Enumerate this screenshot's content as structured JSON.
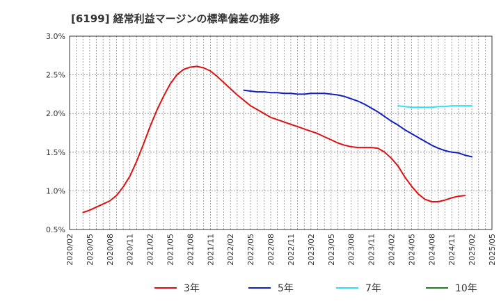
{
  "chart_data": {
    "type": "line",
    "title": "[6199]  経常利益マージンの標準偏差の推移",
    "xlabel": "",
    "ylabel": "",
    "ylim": [
      0.5,
      3.0
    ],
    "yticks": [
      0.5,
      1.0,
      1.5,
      2.0,
      2.5,
      3.0
    ],
    "yticklabels": [
      "0.5%",
      "1.0%",
      "1.5%",
      "2.0%",
      "2.5%",
      "3.0%"
    ],
    "xlim": [
      "2020/02",
      "2025/05"
    ],
    "xticklabels": [
      "2020/02",
      "2020/05",
      "2020/08",
      "2020/11",
      "2021/02",
      "2021/05",
      "2021/08",
      "2021/11",
      "2022/02",
      "2022/05",
      "2022/08",
      "2022/11",
      "2023/02",
      "2023/05",
      "2023/08",
      "2023/11",
      "2024/02",
      "2024/05",
      "2024/08",
      "2024/11",
      "2025/02",
      "2025/05"
    ],
    "grid": true,
    "legend_position": "bottom",
    "series": [
      {
        "name": "3年",
        "color": "#e01010",
        "points": [
          [
            "2020/04",
            0.72
          ],
          [
            "2020/05",
            0.75
          ],
          [
            "2020/06",
            0.79
          ],
          [
            "2020/07",
            0.83
          ],
          [
            "2020/08",
            0.87
          ],
          [
            "2020/09",
            0.94
          ],
          [
            "2020/10",
            1.05
          ],
          [
            "2020/11",
            1.19
          ],
          [
            "2020/12",
            1.38
          ],
          [
            "2021/01",
            1.6
          ],
          [
            "2021/02",
            1.83
          ],
          [
            "2021/03",
            2.04
          ],
          [
            "2021/04",
            2.22
          ],
          [
            "2021/05",
            2.38
          ],
          [
            "2021/06",
            2.5
          ],
          [
            "2021/07",
            2.57
          ],
          [
            "2021/08",
            2.6
          ],
          [
            "2021/09",
            2.61
          ],
          [
            "2021/10",
            2.59
          ],
          [
            "2021/11",
            2.55
          ],
          [
            "2021/12",
            2.48
          ],
          [
            "2022/01",
            2.4
          ],
          [
            "2022/02",
            2.32
          ],
          [
            "2022/03",
            2.24
          ],
          [
            "2022/04",
            2.17
          ],
          [
            "2022/05",
            2.1
          ],
          [
            "2022/06",
            2.05
          ],
          [
            "2022/07",
            2.0
          ],
          [
            "2022/08",
            1.95
          ],
          [
            "2022/09",
            1.92
          ],
          [
            "2022/10",
            1.89
          ],
          [
            "2022/11",
            1.86
          ],
          [
            "2022/12",
            1.83
          ],
          [
            "2023/01",
            1.8
          ],
          [
            "2023/02",
            1.77
          ],
          [
            "2023/03",
            1.74
          ],
          [
            "2023/04",
            1.7
          ],
          [
            "2023/05",
            1.66
          ],
          [
            "2023/06",
            1.62
          ],
          [
            "2023/07",
            1.59
          ],
          [
            "2023/08",
            1.57
          ],
          [
            "2023/09",
            1.56
          ],
          [
            "2023/10",
            1.56
          ],
          [
            "2023/11",
            1.56
          ],
          [
            "2023/12",
            1.55
          ],
          [
            "2024/01",
            1.5
          ],
          [
            "2024/02",
            1.42
          ],
          [
            "2024/03",
            1.32
          ],
          [
            "2024/04",
            1.18
          ],
          [
            "2024/05",
            1.06
          ],
          [
            "2024/06",
            0.96
          ],
          [
            "2024/07",
            0.89
          ],
          [
            "2024/08",
            0.86
          ],
          [
            "2024/09",
            0.86
          ],
          [
            "2024/10",
            0.88
          ],
          [
            "2024/11",
            0.91
          ],
          [
            "2024/12",
            0.93
          ],
          [
            "2025/01",
            0.94
          ]
        ]
      },
      {
        "name": "5年",
        "color": "#1020c0",
        "points": [
          [
            "2022/04",
            2.3
          ],
          [
            "2022/05",
            2.29
          ],
          [
            "2022/06",
            2.28
          ],
          [
            "2022/07",
            2.28
          ],
          [
            "2022/08",
            2.27
          ],
          [
            "2022/09",
            2.27
          ],
          [
            "2022/10",
            2.26
          ],
          [
            "2022/11",
            2.26
          ],
          [
            "2022/12",
            2.25
          ],
          [
            "2023/01",
            2.25
          ],
          [
            "2023/02",
            2.26
          ],
          [
            "2023/03",
            2.26
          ],
          [
            "2023/04",
            2.26
          ],
          [
            "2023/05",
            2.25
          ],
          [
            "2023/06",
            2.24
          ],
          [
            "2023/07",
            2.22
          ],
          [
            "2023/08",
            2.19
          ],
          [
            "2023/09",
            2.16
          ],
          [
            "2023/10",
            2.12
          ],
          [
            "2023/11",
            2.07
          ],
          [
            "2023/12",
            2.02
          ],
          [
            "2024/01",
            1.96
          ],
          [
            "2024/02",
            1.9
          ],
          [
            "2024/03",
            1.85
          ],
          [
            "2024/04",
            1.79
          ],
          [
            "2024/05",
            1.74
          ],
          [
            "2024/06",
            1.69
          ],
          [
            "2024/07",
            1.64
          ],
          [
            "2024/08",
            1.59
          ],
          [
            "2024/09",
            1.55
          ],
          [
            "2024/10",
            1.52
          ],
          [
            "2024/11",
            1.5
          ],
          [
            "2024/12",
            1.49
          ],
          [
            "2025/01",
            1.46
          ],
          [
            "2025/02",
            1.44
          ]
        ]
      },
      {
        "name": "7年",
        "color": "#30e0f0",
        "points": [
          [
            "2024/03",
            2.1
          ],
          [
            "2024/04",
            2.09
          ],
          [
            "2024/05",
            2.08
          ],
          [
            "2024/06",
            2.08
          ],
          [
            "2024/07",
            2.08
          ],
          [
            "2024/08",
            2.08
          ],
          [
            "2024/09",
            2.09
          ],
          [
            "2024/10",
            2.09
          ],
          [
            "2024/11",
            2.1
          ],
          [
            "2024/12",
            2.1
          ],
          [
            "2025/01",
            2.1
          ],
          [
            "2025/02",
            2.1
          ]
        ]
      },
      {
        "name": "10年",
        "color": "#208020",
        "points": []
      }
    ]
  }
}
